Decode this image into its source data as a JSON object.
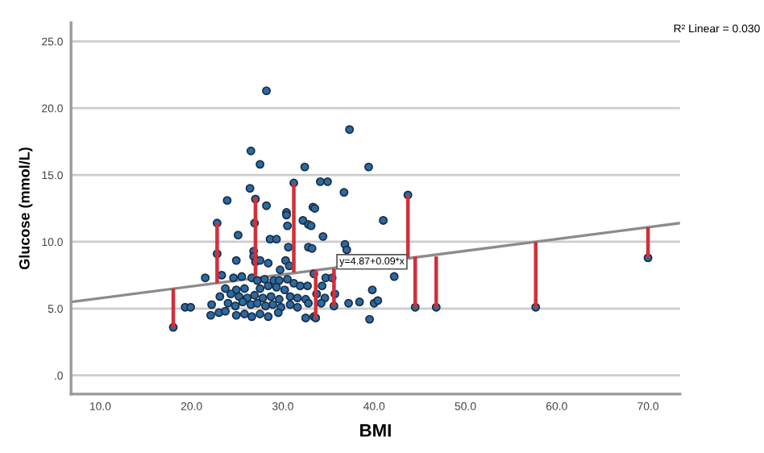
{
  "chart_data": {
    "type": "scatter",
    "xlabel": "BMI",
    "ylabel": "Glucose (mmol/L)",
    "xlim": [
      6.8,
      73.5
    ],
    "ylim": [
      -1.4,
      26.4
    ],
    "xticks": [
      {
        "value": 10,
        "label": "10.0"
      },
      {
        "value": 20,
        "label": "20.0"
      },
      {
        "value": 30,
        "label": "30.0"
      },
      {
        "value": 40,
        "label": "40.0"
      },
      {
        "value": 50,
        "label": "50.0"
      },
      {
        "value": 60,
        "label": "60.0"
      },
      {
        "value": 70,
        "label": "70.0"
      }
    ],
    "yticks": [
      {
        "value": 0,
        "label": ".0"
      },
      {
        "value": 5,
        "label": "5.0"
      },
      {
        "value": 10,
        "label": "10.0"
      },
      {
        "value": 15,
        "label": "15.0"
      },
      {
        "value": 20,
        "label": "20.0"
      },
      {
        "value": 25,
        "label": "25.0"
      }
    ],
    "grid": "y",
    "legend": false,
    "series": [
      {
        "type": "bar",
        "color": "#d0303a",
        "x": [
          18.0,
          22.8,
          27.0,
          31.2,
          33.6,
          35.6,
          43.7,
          44.5,
          46.8,
          57.7,
          70.0
        ],
        "base": [
          3.6,
          6.9,
          7.4,
          7.7,
          4.3,
          5.2,
          8.8,
          5.1,
          5.1,
          5.1,
          8.8
        ],
        "values": [
          2.9,
          4.5,
          5.9,
          6.7,
          3.6,
          2.8,
          4.7,
          3.8,
          3.8,
          4.9,
          2.3
        ]
      },
      {
        "type": "line",
        "color": "#8c8c8c",
        "x": [
          6.8,
          73.5
        ],
        "values": [
          5.5,
          11.4
        ]
      },
      {
        "color": "#2a6aa3",
        "marker": "circle",
        "x": [
          28.2,
          37.3,
          26.5,
          27.5,
          32.4,
          39.4,
          34.1,
          34.9,
          31.2,
          36.7,
          23.9,
          26.4,
          27.0,
          33.3,
          33.5,
          28.2,
          30.4,
          30.4,
          32.2,
          32.8,
          33.1,
          22.8,
          26.9,
          30.5,
          25.1,
          34.4,
          28.6,
          29.3,
          30.6,
          32.8,
          33.2,
          36.8,
          37.0,
          26.8,
          22.8,
          26.8,
          27.0,
          24.9,
          27.5,
          30.3,
          30.7,
          28.4,
          29.7,
          33.4,
          34.7,
          35.4,
          21.5,
          23.3,
          24.6,
          25.5,
          26.6,
          27.2,
          28.0,
          29.0,
          29.6,
          30.5,
          31.2,
          31.9,
          32.7,
          34.3,
          23.7,
          24.9,
          25.8,
          27.5,
          28.4,
          29.3,
          30.2,
          39.8,
          23.1,
          24.3,
          25.2,
          26.1,
          26.9,
          27.8,
          28.7,
          29.6,
          30.8,
          31.6,
          32.5,
          33.7,
          34.6,
          35.7,
          19.3,
          19.9,
          22.2,
          24.0,
          24.8,
          25.6,
          26.5,
          27.2,
          28.1,
          28.9,
          29.8,
          30.8,
          31.6,
          32.8,
          34.2,
          35.6,
          37.2,
          38.4,
          40.0,
          40.4,
          22.1,
          23.0,
          23.7,
          24.9,
          25.8,
          26.6,
          27.5,
          28.4,
          29.5,
          32.5,
          33.4,
          39.5,
          41.0,
          42.2,
          18.0,
          43.7,
          44.5,
          46.8,
          57.7,
          70.0,
          33.6
        ],
        "values": [
          21.3,
          18.4,
          16.8,
          15.8,
          15.6,
          15.6,
          14.5,
          14.5,
          14.4,
          13.7,
          13.1,
          14.0,
          13.2,
          12.6,
          12.5,
          12.7,
          12.2,
          12.0,
          11.6,
          11.3,
          11.2,
          11.4,
          11.4,
          11.2,
          10.5,
          10.4,
          10.2,
          10.2,
          9.6,
          9.6,
          9.5,
          9.8,
          9.4,
          9.3,
          9.1,
          8.9,
          8.5,
          8.6,
          8.6,
          8.6,
          8.2,
          8.4,
          7.9,
          7.6,
          7.3,
          7.3,
          7.3,
          7.5,
          7.3,
          7.4,
          7.3,
          7.1,
          7.2,
          7.1,
          7.1,
          7.2,
          6.9,
          6.7,
          6.7,
          6.7,
          6.5,
          6.4,
          6.5,
          6.5,
          6.7,
          6.6,
          6.4,
          6.4,
          5.9,
          6.1,
          5.9,
          5.8,
          6.0,
          5.8,
          5.9,
          5.7,
          5.9,
          5.8,
          5.7,
          6.1,
          5.8,
          6.1,
          5.1,
          5.1,
          5.3,
          5.4,
          5.2,
          5.5,
          5.3,
          5.4,
          5.2,
          5.3,
          5.1,
          5.3,
          5.1,
          5.4,
          5.4,
          5.2,
          5.4,
          5.5,
          5.4,
          5.6,
          4.5,
          4.7,
          4.8,
          4.5,
          4.6,
          4.4,
          4.6,
          4.4,
          4.7,
          4.3,
          4.4,
          4.2,
          11.6,
          7.4,
          3.6,
          13.5,
          5.1,
          5.1,
          5.1,
          8.8,
          4.3
        ]
      }
    ],
    "annotations": [
      "R² Linear = 0.030",
      {
        "text": "y=4.87+0.09*x",
        "x": 36.2,
        "y": 8.5
      }
    ]
  }
}
